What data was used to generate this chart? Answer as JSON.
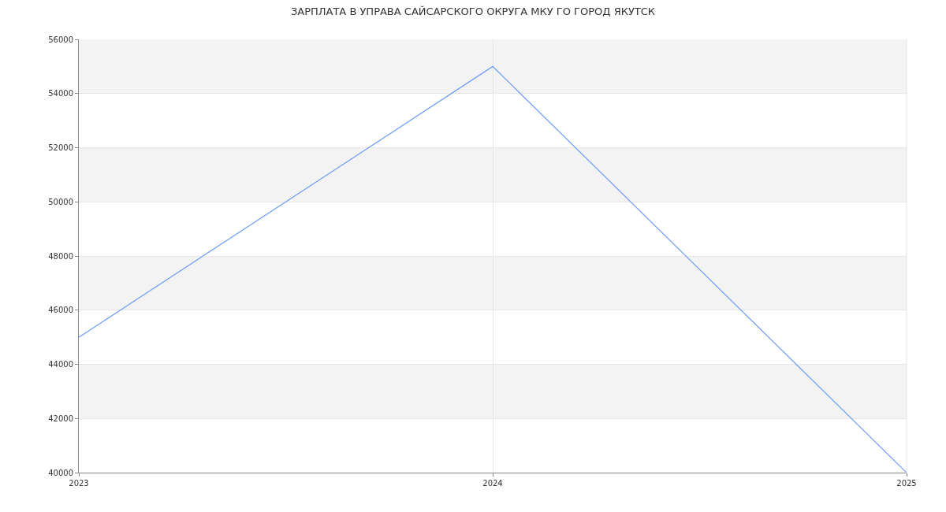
{
  "chart_data": {
    "type": "line",
    "title": "ЗАРПЛАТА В УПРАВА САЙСАРСКОГО ОКРУГА МКУ ГО ГОРОД ЯКУТСК",
    "x": [
      2023,
      2024,
      2025
    ],
    "series": [
      {
        "color": "#6d9ef5",
        "values": [
          45000,
          55000,
          40000
        ]
      }
    ],
    "xlim": [
      2023,
      2025
    ],
    "xticks": [
      2023,
      2024,
      2025
    ],
    "ylim": [
      40000,
      56000
    ],
    "yticks": [
      40000,
      42000,
      44000,
      46000,
      48000,
      50000,
      52000,
      54000,
      56000
    ],
    "bands": [
      {
        "axis": "y",
        "from": 42000,
        "to": 44000,
        "color": "#f3f3f3"
      },
      {
        "axis": "y",
        "from": 46000,
        "to": 48000,
        "color": "#f3f3f3"
      },
      {
        "axis": "y",
        "from": 50000,
        "to": 52000,
        "color": "#f3f3f3"
      },
      {
        "axis": "y",
        "from": 54000,
        "to": 56000,
        "color": "#f3f3f3"
      }
    ],
    "grid": true,
    "marker": "none",
    "line_style": "solid"
  }
}
